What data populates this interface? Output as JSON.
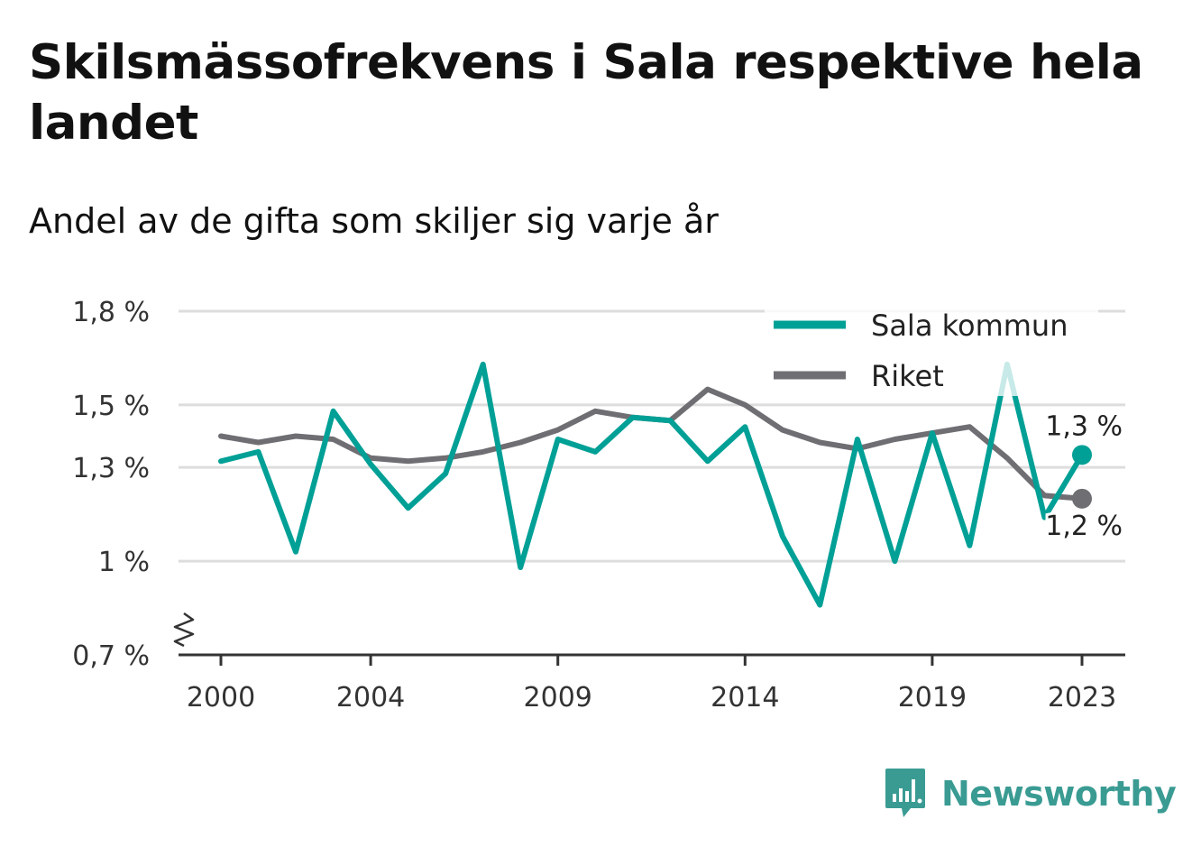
{
  "title": "Skilsmässofrekvens i Sala respektive hela landet",
  "subtitle": "Andel av de gifta som skiljer sig varje år",
  "brand": {
    "name": "Newsworthy",
    "icon": "bar-chart-speech-bubble-icon",
    "color": "#3a9b93"
  },
  "chart_data": {
    "type": "line",
    "x": [
      2000,
      2001,
      2002,
      2003,
      2004,
      2005,
      2006,
      2007,
      2008,
      2009,
      2010,
      2011,
      2012,
      2013,
      2014,
      2015,
      2016,
      2017,
      2018,
      2019,
      2020,
      2021,
      2022,
      2023
    ],
    "x_tick_values": [
      2000,
      2004,
      2009,
      2014,
      2019,
      2023
    ],
    "x_tick_labels": [
      "2000",
      "2004",
      "2009",
      "2014",
      "2019",
      "2023"
    ],
    "y_tick_values": [
      0.7,
      1.0,
      1.3,
      1.5,
      1.8
    ],
    "y_tick_labels": [
      "0,7 %",
      "1 %",
      "1,3 %",
      "1,5 %",
      "1,8 %"
    ],
    "ylim": [
      0.7,
      1.8
    ],
    "y_axis_break": true,
    "grid": "horizontal",
    "legend_position": "top-right",
    "series": [
      {
        "name": "Sala kommun",
        "color": "#00a096",
        "values": [
          1.32,
          1.35,
          1.03,
          1.48,
          1.31,
          1.17,
          1.28,
          1.63,
          0.98,
          1.39,
          1.35,
          1.46,
          1.45,
          1.32,
          1.43,
          1.08,
          0.86,
          1.39,
          1.0,
          1.41,
          1.05,
          1.63,
          1.14,
          1.34
        ],
        "end_label": "1,3 %"
      },
      {
        "name": "Riket",
        "color": "#6f6e73",
        "values": [
          1.4,
          1.38,
          1.4,
          1.39,
          1.33,
          1.32,
          1.33,
          1.35,
          1.38,
          1.42,
          1.48,
          1.46,
          1.45,
          1.55,
          1.5,
          1.42,
          1.38,
          1.36,
          1.39,
          1.41,
          1.43,
          1.33,
          1.21,
          1.2
        ],
        "end_label": "1,2 %"
      }
    ]
  }
}
